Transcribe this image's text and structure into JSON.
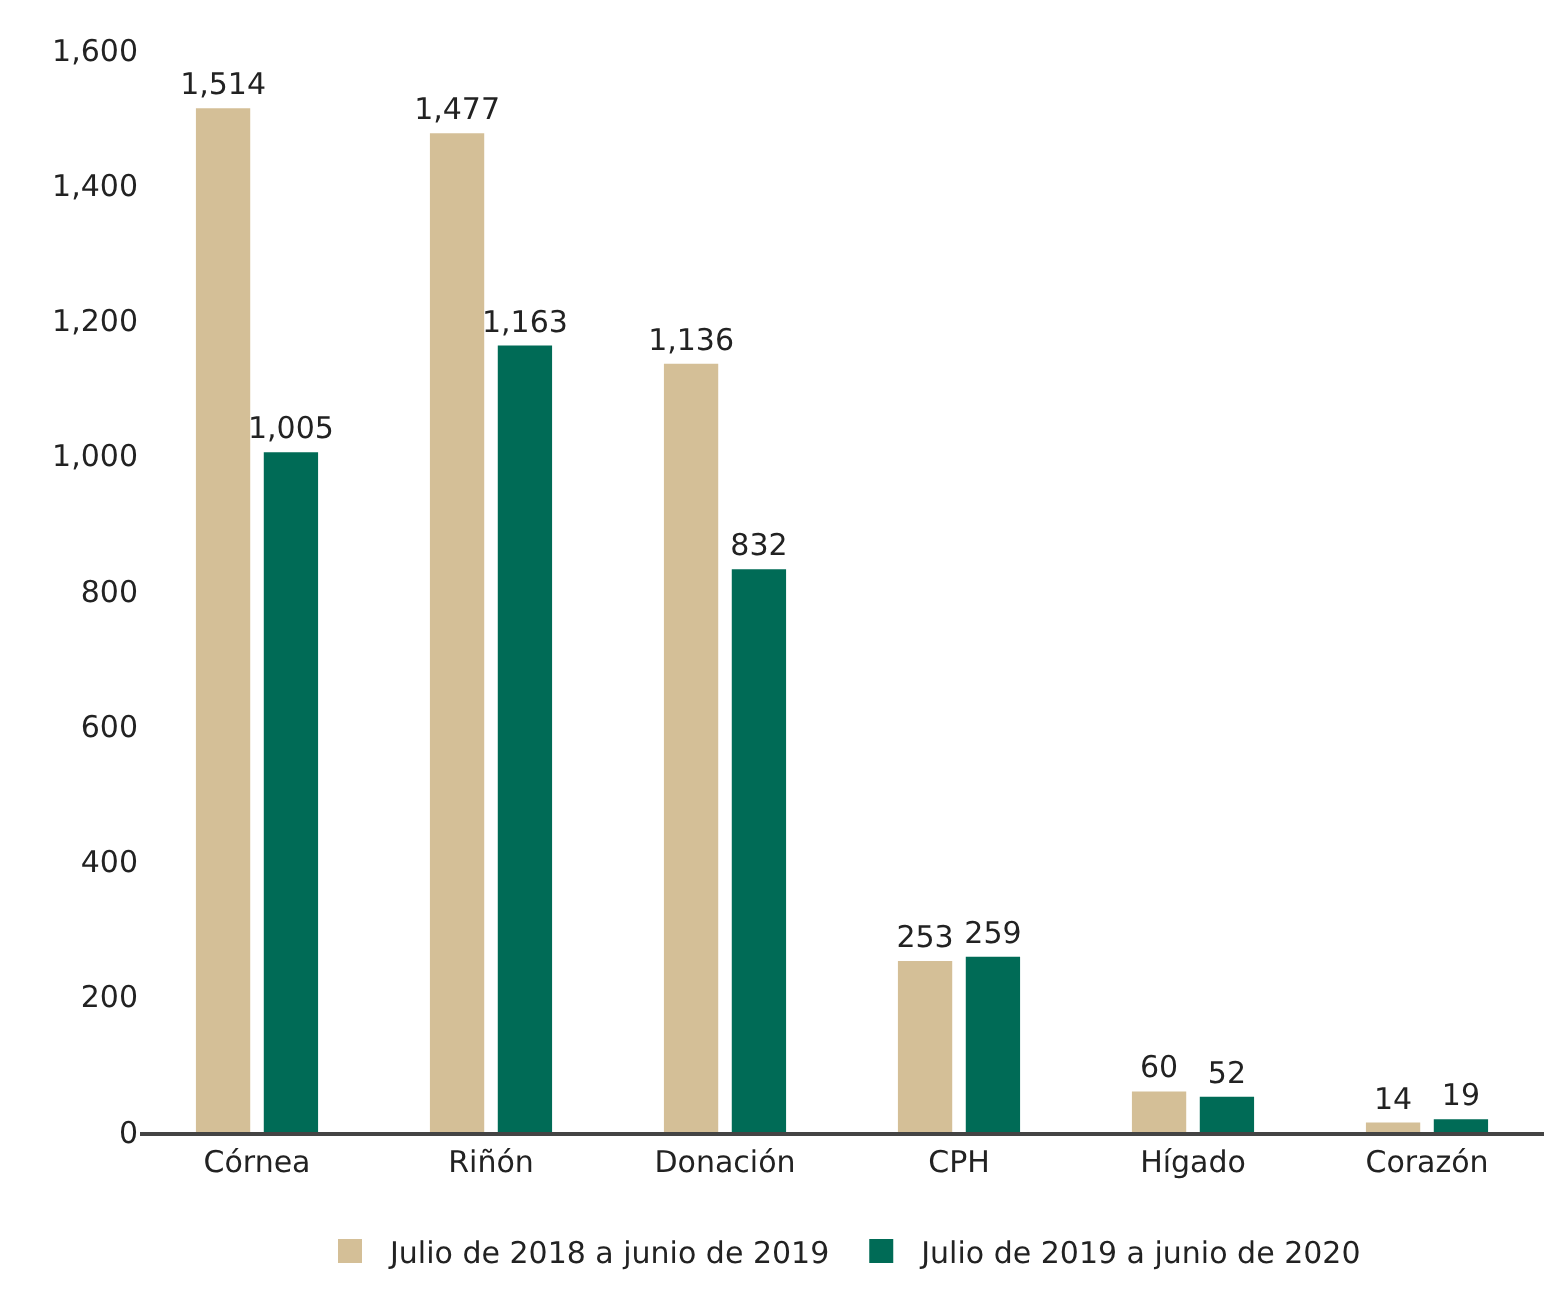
{
  "chart_data": {
    "type": "bar",
    "categories": [
      "Córnea",
      "Riñón",
      "Donación",
      "CPH",
      "Hígado",
      "Corazón"
    ],
    "series": [
      {
        "name": "Julio de 2018 a junio de 2019",
        "color": "#d4bf97",
        "values": [
          1514,
          1477,
          1136,
          253,
          60,
          14
        ],
        "value_labels": [
          "1,514",
          "1,477",
          "1,136",
          "253",
          "60",
          "14"
        ]
      },
      {
        "name": "Julio de 2019 a junio de 2020",
        "color": "#006b56",
        "values": [
          1005,
          1163,
          832,
          259,
          52,
          19
        ],
        "value_labels": [
          "1,005",
          "1,163",
          "832",
          "259",
          "52",
          "19"
        ]
      }
    ],
    "ylim": [
      0,
      1600
    ],
    "yticks": [
      0,
      200,
      400,
      600,
      800,
      {
        "value": 1000,
        "label": "1,000"
      },
      {
        "value": 1200,
        "label": "1,200"
      },
      {
        "value": 1400,
        "label": "1,400"
      },
      {
        "value": 1600,
        "label": "1,600"
      }
    ],
    "grid": false,
    "legend": "bottom"
  }
}
